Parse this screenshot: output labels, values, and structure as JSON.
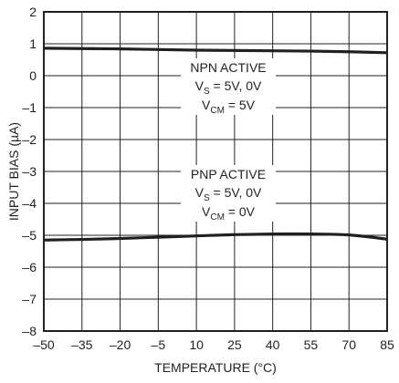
{
  "chart_data": {
    "type": "line",
    "xlabel": "TEMPERATURE (°C)",
    "ylabel": "INPUT BIAS (µA)",
    "xlim": [
      -50,
      85
    ],
    "ylim": [
      -8,
      2
    ],
    "x_ticks": [
      -50,
      -35,
      -20,
      -5,
      10,
      25,
      40,
      55,
      70,
      85
    ],
    "x_tick_labels": [
      "–50",
      "–35",
      "–20",
      "–5",
      "10",
      "25",
      "40",
      "55",
      "70",
      "85"
    ],
    "y_ticks": [
      2,
      1,
      0,
      -1,
      -2,
      -3,
      -4,
      -5,
      -6,
      -7,
      -8
    ],
    "y_tick_labels": [
      "2",
      "1",
      "0",
      "–1",
      "–2",
      "–3",
      "–4",
      "–5",
      "–6",
      "–7",
      "–8"
    ],
    "grid": true,
    "series": [
      {
        "x": [
          -50,
          -35,
          -20,
          -5,
          10,
          25,
          40,
          55,
          70,
          85
        ],
        "y": [
          0.86,
          0.85,
          0.84,
          0.82,
          0.8,
          0.79,
          0.78,
          0.77,
          0.75,
          0.72
        ],
        "color": "#231f20"
      },
      {
        "x": [
          -50,
          -35,
          -20,
          -5,
          10,
          25,
          40,
          55,
          70,
          85
        ],
        "y": [
          -5.15,
          -5.13,
          -5.1,
          -5.06,
          -5.02,
          -4.98,
          -4.96,
          -4.96,
          -4.99,
          -5.12
        ],
        "color": "#231f20"
      }
    ],
    "annotations": [
      {
        "id": "npn",
        "title": "NPN ACTIVE",
        "line2_main": "V",
        "line2_sub": "S",
        "line2_rest": " = 5V, 0V",
        "line3_main": "V",
        "line3_sub": "CM",
        "line3_rest": " = 5V"
      },
      {
        "id": "pnp",
        "title": "PNP ACTIVE",
        "line2_main": "V",
        "line2_sub": "S",
        "line2_rest": " = 5V, 0V",
        "line3_main": "V",
        "line3_sub": "CM",
        "line3_rest": " = 0V"
      }
    ]
  }
}
